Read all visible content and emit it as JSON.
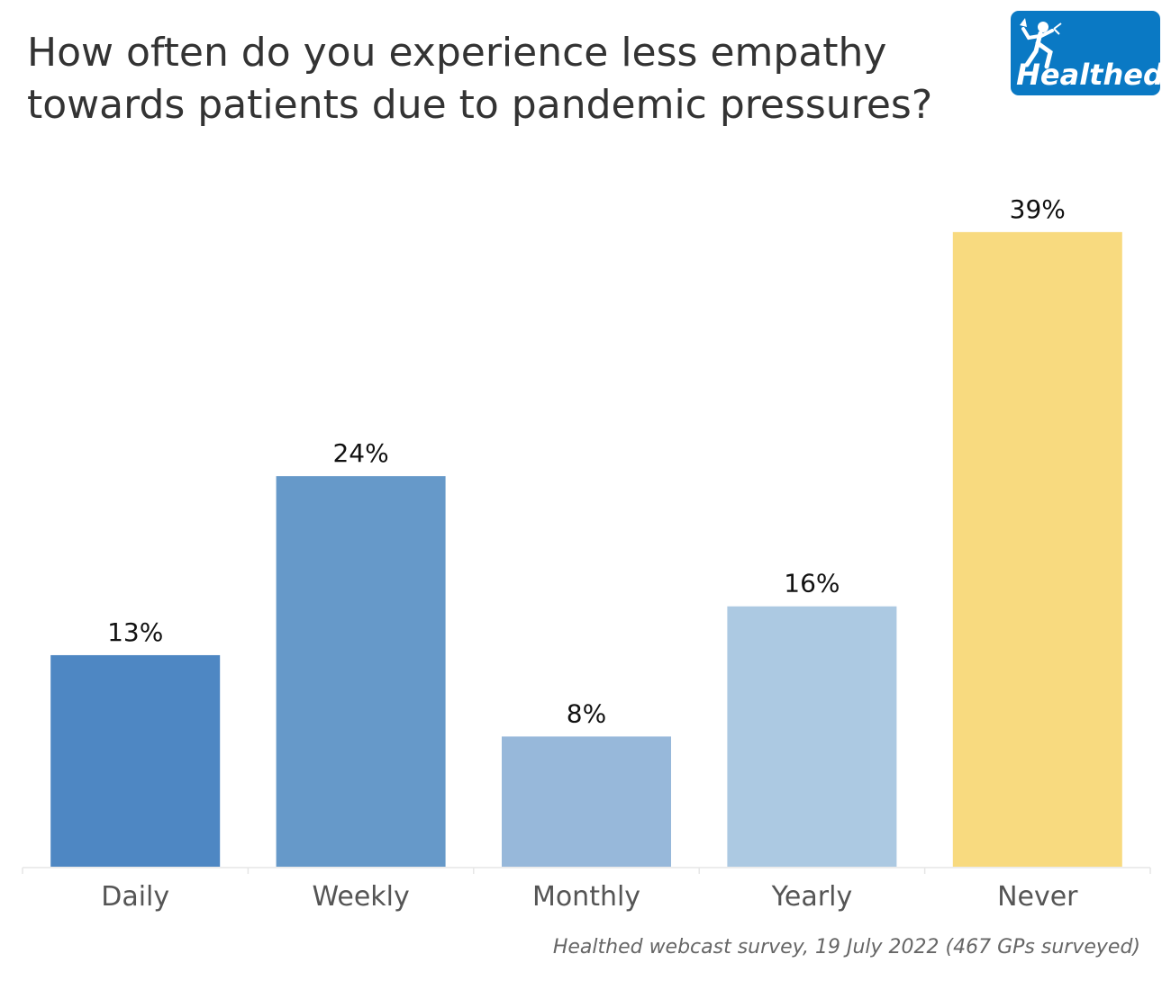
{
  "header": {
    "title_line1": "How often do you experience less empathy",
    "title_line2": "towards patients due to pandemic pressures?"
  },
  "logo": {
    "text": "Healthed",
    "icon": "running-figure-icon",
    "background": "#0a79c4"
  },
  "source": {
    "text": "Healthed webcast survey, 19 July 2022 (467 GPs surveyed)"
  },
  "chart_data": {
    "type": "bar",
    "title": "How often do you experience less empathy towards patients due to pandemic pressures?",
    "categories": [
      "Daily",
      "Weekly",
      "Monthly",
      "Yearly",
      "Never"
    ],
    "values": [
      13,
      24,
      8,
      16,
      39
    ],
    "value_labels": [
      "13%",
      "24%",
      "8%",
      "16%",
      "39%"
    ],
    "colors": [
      "#4e87c3",
      "#6699c9",
      "#97b8da",
      "#acc9e2",
      "#f8da7f"
    ],
    "unit": "%",
    "xlabel": "",
    "ylabel": "",
    "ylim": [
      0,
      45
    ],
    "grid": false,
    "legend": "none"
  }
}
